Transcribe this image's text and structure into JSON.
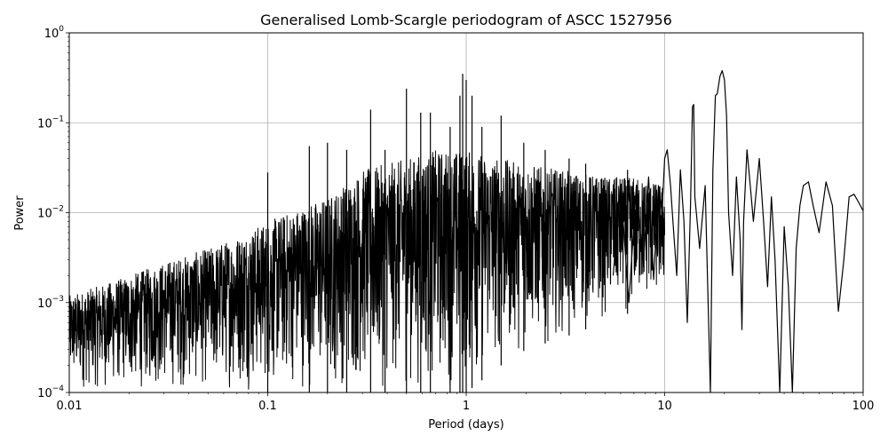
{
  "chart_data": {
    "type": "line",
    "title": "Generalised Lomb-Scargle periodogram of ASCC 1527956",
    "xlabel": "Period (days)",
    "ylabel": "Power",
    "xscale": "log",
    "yscale": "log",
    "xlim": [
      0.01,
      100
    ],
    "ylim": [
      0.0001,
      1
    ],
    "grid": true,
    "line_color": "#000000",
    "x_ticks": [
      {
        "value": 0.01,
        "label": "0.01"
      },
      {
        "value": 0.1,
        "label": "0.1"
      },
      {
        "value": 1,
        "label": "1"
      },
      {
        "value": 10,
        "label": "10"
      },
      {
        "value": 100,
        "label": "100"
      }
    ],
    "y_ticks": [
      {
        "value": 0.0001,
        "base": "10",
        "exp": "−4"
      },
      {
        "value": 0.001,
        "base": "10",
        "exp": "−3"
      },
      {
        "value": 0.01,
        "base": "10",
        "exp": "−2"
      },
      {
        "value": 0.1,
        "base": "10",
        "exp": "−1"
      },
      {
        "value": 1,
        "base": "10",
        "exp": "0"
      }
    ],
    "envelope": {
      "x": [
        0.01,
        0.015,
        0.02,
        0.03,
        0.05,
        0.07,
        0.1,
        0.15,
        0.2,
        0.3,
        0.5,
        0.7,
        1,
        1.5,
        2,
        3,
        5,
        7,
        10
      ],
      "upper": [
        0.0012,
        0.0016,
        0.002,
        0.0028,
        0.004,
        0.0055,
        0.008,
        0.012,
        0.015,
        0.03,
        0.04,
        0.05,
        0.05,
        0.04,
        0.035,
        0.03,
        0.025,
        0.025,
        0.02
      ],
      "lower": [
        0.0001,
        0.0001,
        0.0001,
        0.0001,
        0.0001,
        0.0001,
        0.0001,
        0.0001,
        0.0001,
        0.0001,
        0.0001,
        0.0001,
        0.0001,
        0.0002,
        0.0003,
        0.0004,
        0.0006,
        0.0008,
        0.001
      ]
    },
    "spikes": [
      {
        "x": 0.1,
        "y": 0.028
      },
      {
        "x": 0.162,
        "y": 0.055
      },
      {
        "x": 0.2,
        "y": 0.06
      },
      {
        "x": 0.25,
        "y": 0.05
      },
      {
        "x": 0.33,
        "y": 0.14
      },
      {
        "x": 0.39,
        "y": 0.05
      },
      {
        "x": 0.5,
        "y": 0.24
      },
      {
        "x": 0.59,
        "y": 0.13
      },
      {
        "x": 0.66,
        "y": 0.13
      },
      {
        "x": 0.83,
        "y": 0.09
      },
      {
        "x": 0.93,
        "y": 0.2
      },
      {
        "x": 0.96,
        "y": 0.35
      },
      {
        "x": 1.0,
        "y": 0.3
      },
      {
        "x": 1.07,
        "y": 0.2
      },
      {
        "x": 1.2,
        "y": 0.09
      },
      {
        "x": 1.5,
        "y": 0.12
      },
      {
        "x": 1.95,
        "y": 0.06
      },
      {
        "x": 2.5,
        "y": 0.05
      },
      {
        "x": 3.3,
        "y": 0.04
      },
      {
        "x": 4.0,
        "y": 0.035
      },
      {
        "x": 6.5,
        "y": 0.03
      }
    ],
    "tail": {
      "x": [
        5.5,
        6.0,
        6.6,
        7.2,
        7.8,
        8.3,
        8.8,
        9.3,
        9.7,
        10.0,
        10.3,
        10.7,
        11.0,
        11.5,
        12.0,
        12.5,
        13.0,
        13.5,
        13.8,
        14.0,
        14.2,
        15.0,
        16.0,
        17.0,
        17.5,
        18.0,
        18.4,
        19.0,
        19.5,
        20.0,
        20.5,
        21.0,
        22.0,
        23.0,
        24.0,
        24.5,
        25.0,
        26.0,
        27.0,
        28.0,
        30.0,
        31.5,
        33.0,
        34.5,
        36.0,
        38.0,
        40.0,
        42.0,
        44.0,
        46.0,
        48.0,
        50.0,
        53.0,
        56.0,
        60.0,
        65.0,
        70.0,
        75.0,
        80.0,
        85.0,
        90.0,
        95.0,
        100.0
      ],
      "y": [
        0.002,
        0.02,
        0.001,
        0.02,
        0.0025,
        0.025,
        0.0018,
        0.02,
        0.01,
        0.04,
        0.05,
        0.02,
        0.008,
        0.002,
        0.03,
        0.008,
        0.0006,
        0.012,
        0.15,
        0.16,
        0.015,
        0.004,
        0.02,
        0.0001,
        0.03,
        0.2,
        0.21,
        0.33,
        0.38,
        0.3,
        0.12,
        0.01,
        0.002,
        0.025,
        0.005,
        0.0005,
        0.008,
        0.05,
        0.02,
        0.008,
        0.04,
        0.008,
        0.0015,
        0.015,
        0.003,
        0.0001,
        0.007,
        0.0015,
        0.0001,
        0.004,
        0.012,
        0.02,
        0.022,
        0.012,
        0.006,
        0.022,
        0.012,
        0.0008,
        0.003,
        0.015,
        0.016,
        0.013,
        0.0105
      ]
    }
  }
}
